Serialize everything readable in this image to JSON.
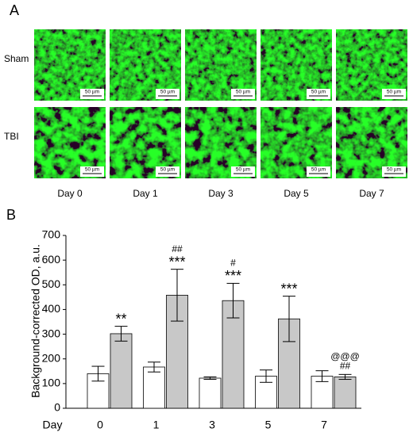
{
  "panel_a": {
    "label": "A",
    "rows": [
      "Sham",
      "TBI"
    ],
    "columns": [
      "Day 0",
      "Day 1",
      "Day 3",
      "Day 5",
      "Day 7"
    ],
    "scale_bar_label": "50 µm"
  },
  "chart_data": {
    "type": "bar",
    "panel_label": "B",
    "x_label": "Day",
    "y_label": "Background-corrected OD, a.u.",
    "categories": [
      "0",
      "1",
      "3",
      "5",
      "7"
    ],
    "series": [
      {
        "color": "#ffffff",
        "values": [
          140,
          167,
          122,
          130,
          130
        ],
        "errors": [
          30,
          20,
          5,
          25,
          22
        ]
      },
      {
        "color": "#c8c8c8",
        "values": [
          302,
          458,
          436,
          362,
          127
        ],
        "errors": [
          30,
          105,
          70,
          92,
          10
        ],
        "annotations": [
          [
            "**"
          ],
          [
            "##",
            "***"
          ],
          [
            "#",
            "***"
          ],
          [
            "***"
          ],
          [
            "@@@",
            "##"
          ]
        ]
      }
    ],
    "ylim": [
      0,
      700
    ],
    "yticks": [
      0,
      100,
      200,
      300,
      400,
      500,
      600,
      700
    ]
  }
}
